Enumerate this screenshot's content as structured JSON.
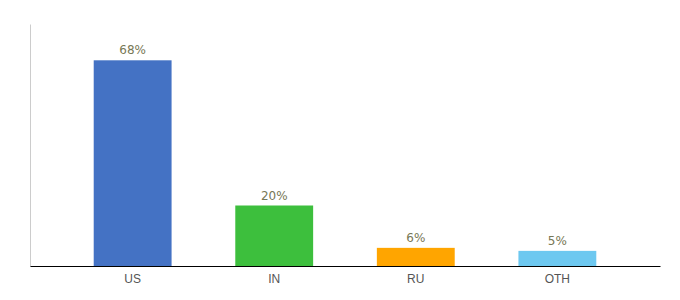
{
  "chart_data": {
    "type": "bar",
    "categories": [
      "US",
      "IN",
      "RU",
      "OTH"
    ],
    "values": [
      68,
      20,
      6,
      5
    ],
    "value_labels": [
      "68%",
      "20%",
      "6%",
      "5%"
    ],
    "data_labels": true,
    "colors": [
      "#4472C4",
      "#3DBF3D",
      "#FFA500",
      "#6DC8F0"
    ],
    "ylim": [
      0,
      80
    ],
    "tick_labels": "x"
  }
}
